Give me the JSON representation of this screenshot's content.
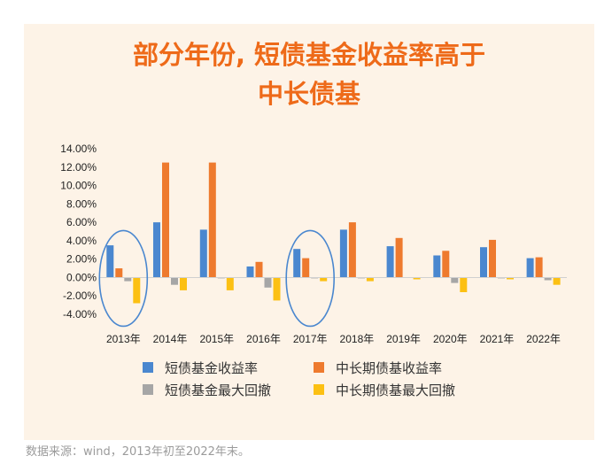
{
  "title_lines": [
    "部分年份, 短债基金收益率高于",
    "中长债基"
  ],
  "source": "数据来源：wind，2013年初至2022年末。",
  "chart_data": {
    "type": "bar",
    "categories": [
      "2013年",
      "2014年",
      "2015年",
      "2016年",
      "2017年",
      "2018年",
      "2019年",
      "2020年",
      "2021年",
      "2022年"
    ],
    "series": [
      {
        "name": "短债基金收益率",
        "color": "#4a87cf",
        "values": [
          3.5,
          6.0,
          5.2,
          1.2,
          3.1,
          5.2,
          3.4,
          2.4,
          3.3,
          2.1
        ]
      },
      {
        "name": "中长期债基收益率",
        "color": "#ee7a2e",
        "values": [
          1.0,
          12.5,
          12.5,
          1.7,
          2.1,
          6.0,
          4.3,
          2.9,
          4.1,
          2.2
        ]
      },
      {
        "name": "短债基金最大回撤",
        "color": "#a6a6a6",
        "values": [
          -0.4,
          -0.8,
          -0.1,
          -1.1,
          -0.1,
          -0.1,
          0.0,
          -0.6,
          -0.1,
          -0.3
        ]
      },
      {
        "name": "中长期债基最大回撤",
        "color": "#fcc013",
        "values": [
          -2.8,
          -1.4,
          -1.4,
          -2.5,
          -0.4,
          -0.4,
          -0.2,
          -1.6,
          -0.2,
          -0.8
        ]
      }
    ],
    "yticks": [
      "14.00%",
      "12.00%",
      "10.00%",
      "8.00%",
      "6.00%",
      "4.00%",
      "2.00%",
      "0.00%",
      "-2.00%",
      "-4.00%"
    ],
    "ylim": [
      -4,
      14
    ],
    "grid": false,
    "legend_position": "bottom",
    "highlighted_categories": [
      "2013年",
      "2017年"
    ],
    "highlight_color": "#4a87cf"
  }
}
